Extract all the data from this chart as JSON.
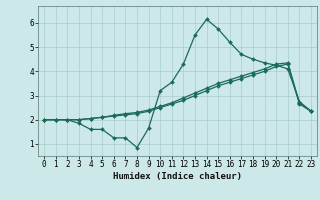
{
  "title": "",
  "xlabel": "Humidex (Indice chaleur)",
  "xlim": [
    -0.5,
    23.5
  ],
  "ylim": [
    0.5,
    6.7
  ],
  "xticks": [
    0,
    1,
    2,
    3,
    4,
    5,
    6,
    7,
    8,
    9,
    10,
    11,
    12,
    13,
    14,
    15,
    16,
    17,
    18,
    19,
    20,
    21,
    22,
    23
  ],
  "yticks": [
    1,
    2,
    3,
    4,
    5,
    6
  ],
  "bg_color": "#cde8e8",
  "grid_color": "#aacccc",
  "line_color": "#1a6b5a",
  "line1_x": [
    0,
    1,
    2,
    3,
    4,
    5,
    6,
    7,
    8,
    9,
    10,
    11,
    12,
    13,
    14,
    15,
    16,
    17,
    18,
    19,
    20,
    21,
    22,
    23
  ],
  "line1_y": [
    2.0,
    2.0,
    2.0,
    1.85,
    1.6,
    1.6,
    1.25,
    1.25,
    0.85,
    1.65,
    3.2,
    3.55,
    4.3,
    5.5,
    6.15,
    5.75,
    5.2,
    4.7,
    4.5,
    4.35,
    4.25,
    4.1,
    2.75,
    2.35
  ],
  "line2_x": [
    0,
    1,
    2,
    3,
    4,
    5,
    6,
    7,
    8,
    9,
    10,
    11,
    12,
    13,
    14,
    15,
    16,
    17,
    18,
    19,
    20,
    21,
    22,
    23
  ],
  "line2_y": [
    2.0,
    2.0,
    2.0,
    2.0,
    2.05,
    2.1,
    2.15,
    2.2,
    2.25,
    2.35,
    2.5,
    2.65,
    2.8,
    3.0,
    3.2,
    3.4,
    3.55,
    3.7,
    3.85,
    4.0,
    4.2,
    4.3,
    2.65,
    2.35
  ],
  "line3_x": [
    0,
    1,
    2,
    3,
    4,
    5,
    6,
    7,
    8,
    9,
    10,
    11,
    12,
    13,
    14,
    15,
    16,
    17,
    18,
    19,
    20,
    21,
    22,
    23
  ],
  "line3_y": [
    2.0,
    2.0,
    2.0,
    2.0,
    2.05,
    2.1,
    2.18,
    2.25,
    2.3,
    2.4,
    2.55,
    2.7,
    2.9,
    3.1,
    3.3,
    3.5,
    3.65,
    3.8,
    3.95,
    4.1,
    4.3,
    4.35,
    2.7,
    2.35
  ]
}
